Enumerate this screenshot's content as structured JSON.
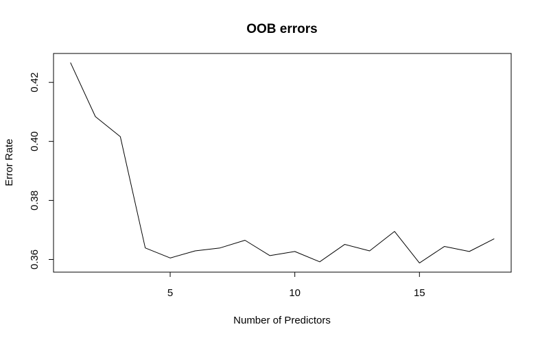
{
  "chart_data": {
    "type": "line",
    "title": "OOB errors",
    "xlabel": "Number of Predictors",
    "ylabel": "Error Rate",
    "x": [
      1,
      2,
      3,
      4,
      5,
      6,
      7,
      8,
      9,
      10,
      11,
      12,
      13,
      14,
      15,
      16,
      17,
      18
    ],
    "series": [
      {
        "values": [
          0.4267,
          0.4084,
          0.4016,
          0.3639,
          0.3605,
          0.3629,
          0.3639,
          0.3665,
          0.3613,
          0.3627,
          0.3592,
          0.3651,
          0.3629,
          0.3695,
          0.3588,
          0.3644,
          0.3627,
          0.367
        ],
        "color": "#000000"
      }
    ],
    "xlim": [
      0.32,
      18.68
    ],
    "ylim": [
      0.3557,
      0.4298
    ],
    "xticks": [
      5,
      10,
      15
    ],
    "xtick_labels": [
      "5",
      "10",
      "15"
    ],
    "yticks": [
      0.36,
      0.38,
      0.4,
      0.42
    ],
    "ytick_labels": [
      "0.36",
      "0.38",
      "0.40",
      "0.42"
    ],
    "grid": false,
    "legend": "none"
  }
}
